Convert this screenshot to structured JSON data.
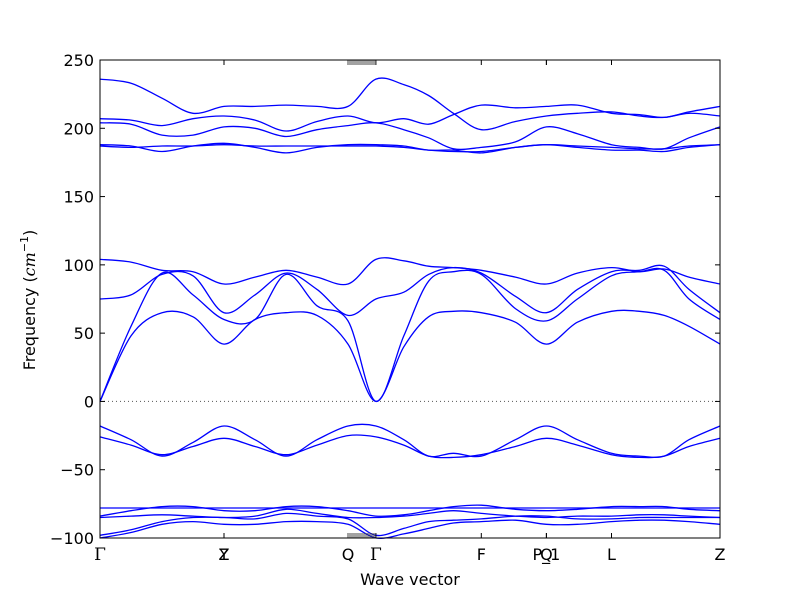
{
  "chart_data": {
    "type": "line",
    "title": "",
    "xlabel": "Wave vector",
    "ylabel": "Frequency ($cm^{-1}$)",
    "ylabel_parts": {
      "text": "Frequency (",
      "unit": "cm",
      "exp": "−1",
      "close": ")"
    },
    "ylim": [
      -100,
      250
    ],
    "xlim": [
      0,
      10
    ],
    "yticks": [
      -100,
      -50,
      0,
      50,
      100,
      150,
      200,
      250
    ],
    "grid": false,
    "zero_line": true,
    "line_color": "#0000ff",
    "qpoints": [
      {
        "label": "Γ",
        "x": 0
      },
      {
        "label": "Y",
        "x": 2
      },
      {
        "label": "Z",
        "x": 2
      },
      {
        "label": "Q",
        "x": 4
      },
      {
        "label": "Γ",
        "x": 4.45
      },
      {
        "label": "F",
        "x": 6.15
      },
      {
        "label": "P_1",
        "x": 7.2
      },
      {
        "label": "Q",
        "x": 7.2
      },
      {
        "label": "L",
        "x": 8.25
      },
      {
        "label": "Z",
        "x": 10
      }
    ],
    "x": [
      0,
      0.5,
      1,
      1.5,
      2,
      2.5,
      3,
      3.5,
      4,
      4.45,
      4.9,
      5.3,
      5.7,
      6.15,
      6.7,
      7.2,
      7.7,
      8.25,
      8.7,
      9.1,
      9.5,
      10
    ],
    "series": [
      {
        "values": [
          236,
          233,
          222,
          211,
          216,
          216,
          217,
          216,
          216,
          236,
          232,
          224,
          211,
          199,
          205,
          209,
          211,
          212,
          209,
          208,
          212,
          216
        ]
      },
      {
        "values": [
          207,
          206,
          202,
          207,
          209,
          206,
          198,
          205,
          209,
          204,
          207,
          203,
          210,
          217,
          215,
          216,
          217,
          211,
          210,
          208,
          211,
          209
        ]
      },
      {
        "values": [
          204,
          203,
          195,
          195,
          201,
          200,
          194,
          199,
          202,
          204,
          199,
          193,
          185,
          186,
          190,
          201,
          196,
          188,
          186,
          185,
          193,
          201
        ]
      },
      {
        "values": [
          188,
          187,
          183,
          187,
          189,
          186,
          182,
          186,
          188,
          188,
          187,
          184,
          184,
          182,
          186,
          188,
          187,
          186,
          185,
          185,
          187,
          188
        ]
      },
      {
        "values": [
          187,
          186,
          187,
          187,
          188,
          187,
          187,
          187,
          187,
          187,
          186,
          184,
          183,
          183,
          186,
          188,
          186,
          184,
          184,
          183,
          186,
          188
        ]
      },
      {
        "values": [
          104,
          102,
          96,
          95,
          86,
          91,
          96,
          91,
          86,
          104,
          103,
          99,
          98,
          96,
          91,
          86,
          94,
          98,
          95,
          97,
          91,
          86
        ]
      },
      {
        "values": [
          75,
          78,
          93,
          92,
          65,
          78,
          94,
          82,
          63,
          75,
          80,
          93,
          98,
          94,
          77,
          65,
          82,
          95,
          96,
          99,
          82,
          65
        ]
      },
      {
        "values": [
          0,
          55,
          94,
          78,
          60,
          60,
          93,
          70,
          59,
          0,
          48,
          88,
          95,
          93,
          68,
          59,
          75,
          92,
          95,
          96,
          75,
          60
        ]
      },
      {
        "values": [
          0,
          48,
          65,
          62,
          42,
          60,
          65,
          63,
          42,
          0,
          40,
          62,
          66,
          65,
          58,
          42,
          58,
          66,
          66,
          63,
          55,
          42
        ]
      },
      {
        "values": [
          -18,
          -28,
          -40,
          -30,
          -18,
          -28,
          -40,
          -28,
          -18,
          -18,
          -28,
          -40,
          -38,
          -40,
          -28,
          -18,
          -28,
          -38,
          -40,
          -40,
          -28,
          -18
        ]
      },
      {
        "values": [
          -26,
          -32,
          -39,
          -33,
          -27,
          -33,
          -39,
          -32,
          -25,
          -26,
          -32,
          -40,
          -41,
          -39,
          -33,
          -27,
          -32,
          -39,
          -41,
          -40,
          -33,
          -27
        ]
      },
      {
        "values": [
          -78,
          -78,
          -78,
          -78,
          -78,
          -78,
          -78,
          -78,
          -78,
          -78,
          -78,
          -78,
          -78,
          -78,
          -78,
          -78,
          -78,
          -78,
          -78,
          -78,
          -78,
          -78
        ]
      },
      {
        "values": [
          -84,
          -80,
          -77,
          -77,
          -80,
          -80,
          -77,
          -77,
          -80,
          -84,
          -83,
          -80,
          -77,
          -76,
          -79,
          -80,
          -79,
          -77,
          -77,
          -77,
          -79,
          -80
        ]
      },
      {
        "values": [
          -85,
          -84,
          -83,
          -84,
          -85,
          -84,
          -79,
          -82,
          -85,
          -85,
          -84,
          -82,
          -80,
          -82,
          -84,
          -85,
          -84,
          -84,
          -83,
          -83,
          -84,
          -85
        ]
      },
      {
        "values": [
          -98,
          -94,
          -88,
          -85,
          -85,
          -86,
          -82,
          -84,
          -86,
          -98,
          -93,
          -88,
          -87,
          -86,
          -84,
          -84,
          -86,
          -86,
          -85,
          -85,
          -85,
          -85
        ]
      },
      {
        "values": [
          -100,
          -96,
          -90,
          -88,
          -90,
          -90,
          -88,
          -88,
          -90,
          -100,
          -97,
          -93,
          -89,
          -88,
          -87,
          -90,
          -90,
          -88,
          -87,
          -87,
          -88,
          -90
        ]
      }
    ]
  }
}
